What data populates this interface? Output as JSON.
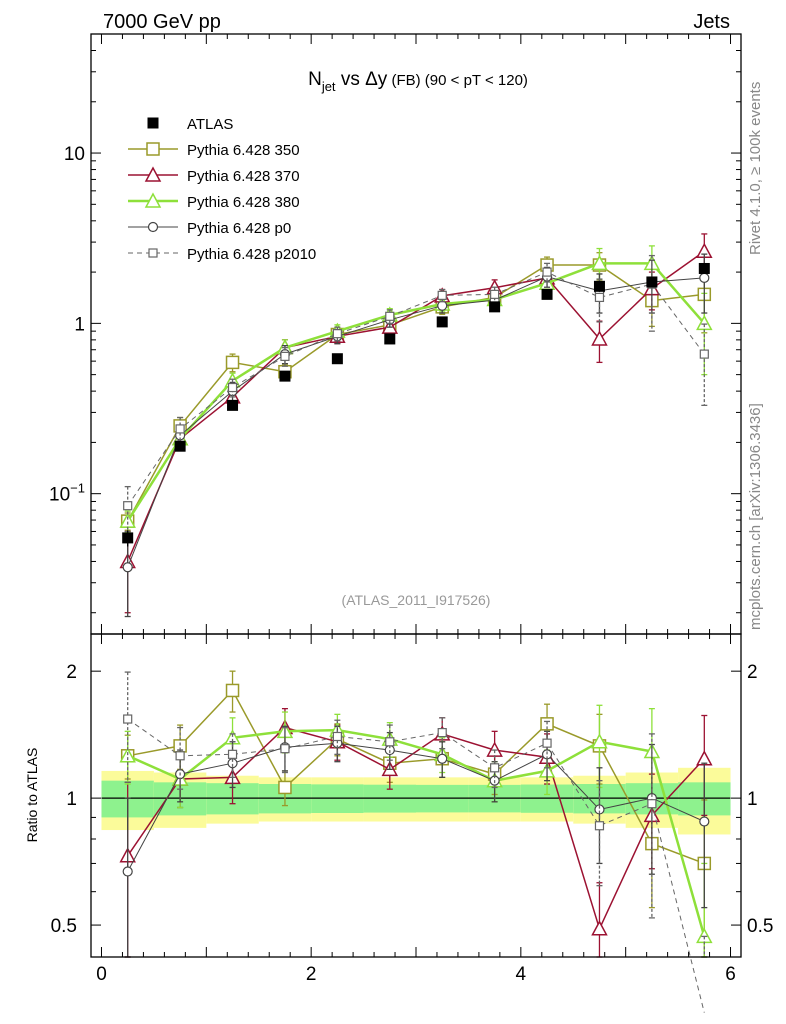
{
  "header": {
    "left": "7000 GeV pp",
    "right": "Jets",
    "side_rivet": "Rivet 4.1.0, ≥ 100k events",
    "side_mcplots": "mcplots.cern.ch [arXiv:1306.3436]"
  },
  "colors": {
    "atlas": "#000000",
    "p350": "#9a9a2a",
    "p370": "#9c1232",
    "p380": "#8ee03a",
    "p0": "#444444",
    "p2010": "#666666",
    "band_inner": "#8ef28e",
    "band_outer": "#fbfb9a"
  },
  "chart_data": [
    {
      "type": "line",
      "title_parts": {
        "n": "N",
        "sub": "jet",
        "vs": " vs Δy",
        "fb": " (FB)",
        "cut": " (90 < pT < 120)"
      },
      "watermark": "(ATLAS_2011_I917526)",
      "yscale": "log",
      "xlim": [
        -0.1,
        6.1
      ],
      "ylim": [
        0.015,
        50
      ],
      "yticks": [
        {
          "value": 0.1,
          "base": "10",
          "exp": "−1"
        },
        {
          "value": 1,
          "base": "1",
          "exp": ""
        },
        {
          "value": 10,
          "base": "10",
          "exp": ""
        }
      ],
      "x": [
        0.25,
        0.75,
        1.25,
        1.75,
        2.25,
        2.75,
        3.25,
        3.75,
        4.25,
        4.75,
        5.25,
        5.75
      ],
      "data": {
        "name": "ATLAS",
        "values": [
          0.055,
          0.19,
          0.33,
          0.49,
          0.62,
          0.81,
          1.02,
          1.25,
          1.48,
          1.65,
          1.75,
          2.1
        ],
        "errors": [
          0.006,
          0.012,
          0.02,
          0.03,
          0.035,
          0.04,
          0.05,
          0.06,
          0.07,
          0.09,
          0.1,
          0.15
        ]
      },
      "series": [
        {
          "key": "p350",
          "name": "Pythia 6.428 350",
          "marker": "square",
          "dash": "",
          "width": 1.5,
          "values": [
            0.069,
            0.25,
            0.59,
            0.52,
            0.86,
            0.98,
            1.25,
            1.42,
            2.2,
            2.2,
            1.36,
            1.48
          ],
          "errors": [
            0.008,
            0.03,
            0.07,
            0.05,
            0.08,
            0.09,
            0.12,
            0.15,
            0.25,
            0.4,
            0.4,
            0.6
          ]
        },
        {
          "key": "p370",
          "name": "Pythia 6.428 370",
          "marker": "triangle",
          "dash": "",
          "width": 1.5,
          "values": [
            0.04,
            0.21,
            0.37,
            0.72,
            0.84,
            0.95,
            1.45,
            1.62,
            1.85,
            0.81,
            1.6,
            2.65
          ],
          "errors": [
            0.02,
            0.03,
            0.05,
            0.08,
            0.08,
            0.09,
            0.13,
            0.18,
            0.25,
            0.22,
            0.4,
            0.7
          ]
        },
        {
          "key": "p380",
          "name": "Pythia 6.428 380",
          "marker": "triangle",
          "dash": "",
          "width": 2.5,
          "values": [
            0.069,
            0.21,
            0.46,
            0.72,
            0.9,
            1.12,
            1.3,
            1.38,
            1.72,
            2.25,
            2.25,
            1.0
          ],
          "errors": [
            0.01,
            0.03,
            0.05,
            0.08,
            0.08,
            0.1,
            0.12,
            0.15,
            0.2,
            0.5,
            0.6,
            0.5
          ]
        },
        {
          "key": "p0",
          "name": "Pythia 6.428 p0",
          "marker": "circle",
          "dash": "",
          "width": 1,
          "values": [
            0.037,
            0.22,
            0.4,
            0.66,
            0.84,
            1.05,
            1.27,
            1.37,
            1.88,
            1.55,
            1.75,
            1.85
          ],
          "errors": [
            0.018,
            0.03,
            0.05,
            0.08,
            0.08,
            0.1,
            0.12,
            0.15,
            0.25,
            0.4,
            0.6,
            0.7
          ]
        },
        {
          "key": "p2010",
          "name": "Pythia 6.428 p2010",
          "marker": "square-small",
          "dash": "5,4",
          "width": 1,
          "values": [
            0.085,
            0.24,
            0.42,
            0.64,
            0.87,
            1.1,
            1.46,
            1.48,
            2.0,
            1.42,
            1.7,
            0.66
          ],
          "errors": [
            0.025,
            0.04,
            0.05,
            0.08,
            0.08,
            0.1,
            0.12,
            0.15,
            0.25,
            0.4,
            0.8,
            0.33
          ]
        }
      ]
    },
    {
      "type": "line",
      "ylabel": "Ratio to ATLAS",
      "yscale": "log",
      "ylim": [
        0.42,
        2.45
      ],
      "yticks": [
        {
          "value": 0.5,
          "label": "0.5"
        },
        {
          "value": 1,
          "label": "1"
        },
        {
          "value": 2,
          "label": "2"
        }
      ],
      "xticks": [
        0,
        2,
        4,
        6
      ],
      "band_inner": [
        0.1,
        0.09,
        0.085,
        0.08,
        0.078,
        0.076,
        0.075,
        0.075,
        0.077,
        0.08,
        0.085,
        0.09
      ],
      "band_outer": [
        0.16,
        0.15,
        0.13,
        0.12,
        0.12,
        0.12,
        0.12,
        0.12,
        0.12,
        0.13,
        0.15,
        0.18
      ],
      "series": [
        {
          "key": "p350",
          "values": [
            1.26,
            1.33,
            1.8,
            1.06,
            1.38,
            1.21,
            1.24,
            1.14,
            1.5,
            1.33,
            0.78,
            0.7
          ],
          "errors": [
            0.15,
            0.16,
            0.2,
            0.1,
            0.12,
            0.12,
            0.12,
            0.12,
            0.17,
            0.25,
            0.23,
            0.29
          ]
        },
        {
          "key": "p370",
          "values": [
            0.73,
            1.11,
            1.12,
            1.47,
            1.36,
            1.17,
            1.42,
            1.3,
            1.25,
            0.49,
            0.91,
            1.24
          ],
          "errors": [
            0.36,
            0.16,
            0.15,
            0.16,
            0.13,
            0.12,
            0.13,
            0.14,
            0.17,
            0.14,
            0.23,
            0.33
          ]
        },
        {
          "key": "p380",
          "values": [
            1.26,
            1.11,
            1.39,
            1.44,
            1.45,
            1.38,
            1.27,
            1.1,
            1.16,
            1.36,
            1.29,
            0.47
          ],
          "errors": [
            0.18,
            0.16,
            0.16,
            0.16,
            0.13,
            0.13,
            0.12,
            0.12,
            0.14,
            0.3,
            0.34,
            0.23
          ]
        },
        {
          "key": "p0",
          "values": [
            0.67,
            1.14,
            1.21,
            1.32,
            1.35,
            1.3,
            1.24,
            1.1,
            1.27,
            0.94,
            1.0,
            0.88
          ],
          "errors": [
            0.33,
            0.16,
            0.15,
            0.16,
            0.13,
            0.13,
            0.12,
            0.12,
            0.17,
            0.24,
            0.34,
            0.33
          ]
        },
        {
          "key": "p2010",
          "values": [
            1.54,
            1.26,
            1.27,
            1.31,
            1.4,
            1.36,
            1.43,
            1.18,
            1.35,
            0.86,
            0.97,
            0.31
          ],
          "errors": [
            0.45,
            0.21,
            0.15,
            0.16,
            0.13,
            0.13,
            0.12,
            0.12,
            0.17,
            0.24,
            0.45,
            0.16
          ]
        }
      ]
    }
  ]
}
